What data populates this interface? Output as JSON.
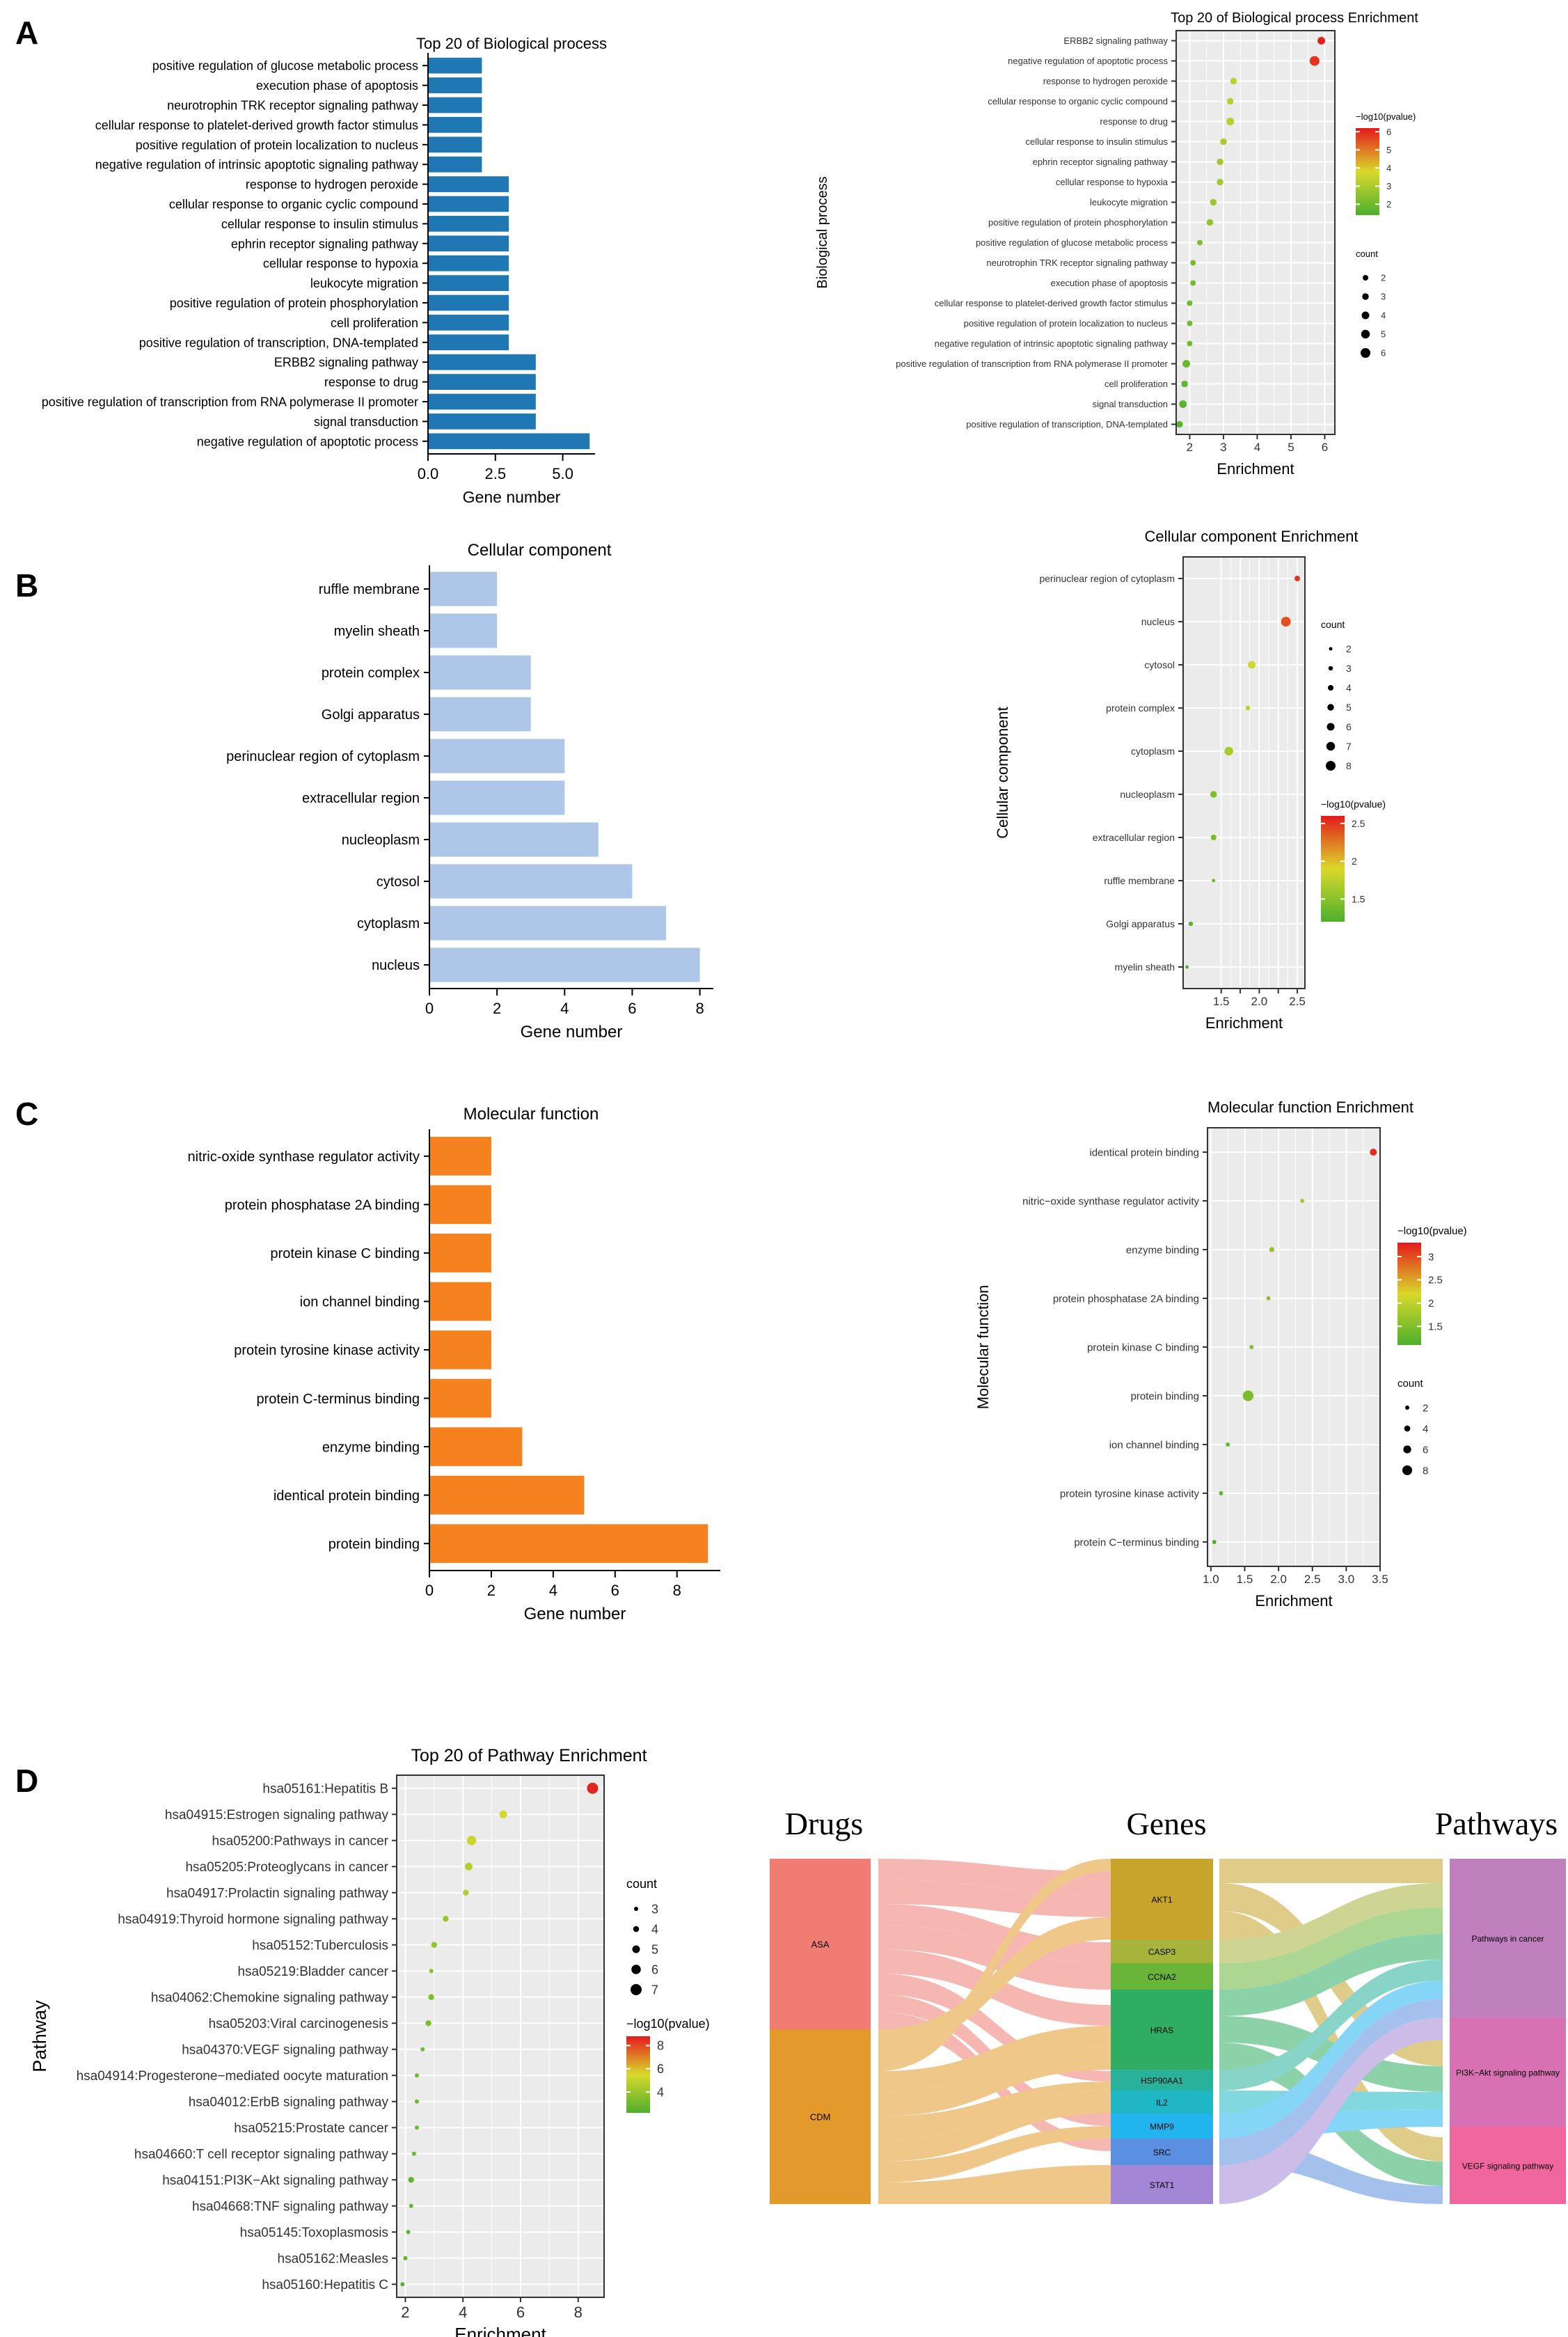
{
  "panel_labels": [
    "A",
    "B",
    "C",
    "D"
  ],
  "colors": {
    "bp_bar": "#1f77b4",
    "cc_bar": "#aec7e8",
    "mf_bar": "#f5821f",
    "grad_high": "#e41a1c",
    "grad_mid": "#d9d92b",
    "grad_low": "#4daf2d",
    "panel_bg": "#ebebeb",
    "grid": "#ffffff"
  },
  "chart_data": [
    {
      "id": "bp_bar",
      "type": "bar",
      "orientation": "horizontal",
      "title": "Top 20 of Biological process",
      "xlabel": "Gene number",
      "ylabel": "",
      "xlim": [
        0,
        6.2
      ],
      "xticks": [
        0,
        2.5,
        5
      ],
      "xtick_labels": [
        "0.0",
        "2.5",
        "5.0"
      ],
      "color": "#1f77b4",
      "categories": [
        "positive regulation of glucose metabolic process",
        "execution phase of apoptosis",
        "neurotrophin TRK receptor signaling pathway",
        "cellular response to platelet-derived growth factor stimulus",
        "positive regulation of protein localization to nucleus",
        "negative regulation of intrinsic apoptotic signaling pathway",
        "response to hydrogen peroxide",
        "cellular response to organic cyclic compound",
        "cellular response to insulin stimulus",
        "ephrin receptor signaling pathway",
        "cellular response to hypoxia",
        "leukocyte migration",
        "positive regulation of protein phosphorylation",
        "cell proliferation",
        "positive regulation of transcription, DNA-templated",
        "ERBB2 signaling pathway",
        "response to drug",
        "positive regulation of transcription from RNA polymerase II promoter",
        "signal transduction",
        "negative regulation of apoptotic process"
      ],
      "values": [
        2,
        2,
        2,
        2,
        2,
        2,
        3,
        3,
        3,
        3,
        3,
        3,
        3,
        3,
        3,
        4,
        4,
        4,
        4,
        6
      ]
    },
    {
      "id": "bp_dot",
      "type": "scatter",
      "title": "Top 20 of Biological process Enrichment",
      "xlabel": "Enrichment",
      "ylabel": "Biological process",
      "xlim": [
        1.6,
        6.3
      ],
      "xticks": [
        2,
        3,
        4,
        5,
        6
      ],
      "categories": [
        "ERBB2 signaling pathway",
        "negative regulation of apoptotic process",
        "response to hydrogen peroxide",
        "cellular response to organic cyclic compound",
        "response to drug",
        "cellular response to insulin stimulus",
        "ephrin receptor signaling pathway",
        "cellular response to hypoxia",
        "leukocyte migration",
        "positive regulation of protein phosphorylation",
        "positive regulation of glucose metabolic process",
        "neurotrophin TRK receptor signaling pathway",
        "execution phase of apoptosis",
        "cellular response to platelet-derived growth factor stimulus",
        "positive regulation of protein localization to nucleus",
        "negative regulation of intrinsic apoptotic signaling pathway",
        "positive regulation of transcription from RNA polymerase II promoter",
        "cell proliferation",
        "signal transduction",
        "positive regulation of transcription, DNA-templated"
      ],
      "x": [
        5.9,
        5.7,
        3.3,
        3.2,
        3.2,
        3.0,
        2.9,
        2.9,
        2.7,
        2.6,
        2.3,
        2.1,
        2.1,
        2.0,
        2.0,
        2.0,
        1.9,
        1.85,
        1.8,
        1.7
      ],
      "counts": [
        4,
        6,
        3,
        3,
        4,
        3,
        3,
        3,
        3,
        3,
        2,
        2,
        2,
        2,
        2,
        2,
        4,
        3,
        4,
        3
      ],
      "pvalue_log": [
        6.1,
        5.9,
        3.3,
        3.2,
        3.2,
        3.0,
        2.9,
        2.9,
        2.7,
        2.6,
        2.3,
        2.1,
        2.1,
        2.0,
        2.0,
        2.0,
        1.9,
        1.8,
        1.7,
        1.6
      ],
      "color_range": [
        1.4,
        6.2
      ],
      "legend_color_title": "−log10(pvalue)",
      "legend_color_ticks": [
        6,
        5,
        4,
        3,
        2
      ],
      "legend_size_title": "count",
      "legend_size_values": [
        2,
        3,
        4,
        5,
        6
      ]
    },
    {
      "id": "cc_bar",
      "type": "bar",
      "orientation": "horizontal",
      "title": "Cellular component",
      "xlabel": "Gene number",
      "ylabel": "",
      "xlim": [
        0,
        8.4
      ],
      "xticks": [
        0,
        2,
        4,
        6,
        8
      ],
      "xtick_labels": [
        "0",
        "2",
        "4",
        "6",
        "8"
      ],
      "color": "#aec7e8",
      "categories": [
        "ruffle membrane",
        "myelin sheath",
        "protein complex",
        "Golgi apparatus",
        "perinuclear region of cytoplasm",
        "extracellular region",
        "nucleoplasm",
        "cytosol",
        "cytoplasm",
        "nucleus"
      ],
      "values": [
        2,
        2,
        3,
        3,
        4,
        4,
        5,
        6,
        7,
        8
      ]
    },
    {
      "id": "cc_dot",
      "type": "scatter",
      "title": "Cellular component Enrichment",
      "xlabel": "Enrichment",
      "ylabel": "Cellular component",
      "xlim": [
        1.0,
        2.6
      ],
      "xticks": [
        1.5,
        1.75,
        2.0,
        2.25,
        2.5
      ],
      "xtick_labels": [
        "1.5",
        "",
        "2.0",
        "",
        "2.5"
      ],
      "categories": [
        "perinuclear region of cytoplasm",
        "nucleus",
        "cytosol",
        "protein complex",
        "cytoplasm",
        "nucleoplasm",
        "extracellular region",
        "ruffle membrane",
        "Golgi apparatus",
        "myelin sheath"
      ],
      "x": [
        2.5,
        2.35,
        1.9,
        1.85,
        1.6,
        1.4,
        1.4,
        1.4,
        1.1,
        1.05
      ],
      "counts": [
        4,
        8,
        6,
        3,
        7,
        5,
        4,
        2,
        3,
        2
      ],
      "pvalue_log": [
        2.5,
        2.4,
        1.85,
        1.75,
        1.65,
        1.45,
        1.4,
        1.35,
        1.25,
        1.2
      ],
      "color_range": [
        1.2,
        2.6
      ],
      "legend_color_title": "−log10(pvalue)",
      "legend_color_ticks": [
        2.5,
        2.0,
        1.5
      ],
      "legend_size_title": "count",
      "legend_size_values": [
        2,
        3,
        4,
        5,
        6,
        7,
        8
      ]
    },
    {
      "id": "mf_bar",
      "type": "bar",
      "orientation": "horizontal",
      "title": "Molecular function",
      "xlabel": "Gene number",
      "ylabel": "",
      "xlim": [
        0,
        9.4
      ],
      "xticks": [
        0,
        2,
        4,
        6,
        8
      ],
      "xtick_labels": [
        "0",
        "2",
        "4",
        "6",
        "8"
      ],
      "color": "#f5821f",
      "categories": [
        "nitric-oxide synthase regulator activity",
        "protein phosphatase 2A binding",
        "protein kinase C binding",
        "ion channel binding",
        "protein tyrosine kinase activity",
        "protein C-terminus binding",
        "enzyme binding",
        "identical protein binding",
        "protein binding"
      ],
      "values": [
        2,
        2,
        2,
        2,
        2,
        2,
        3,
        5,
        9
      ]
    },
    {
      "id": "mf_dot",
      "type": "scatter",
      "title": "Molecular function Enrichment",
      "xlabel": "Enrichment",
      "ylabel": "Molecular function",
      "xlim": [
        0.95,
        3.5
      ],
      "xticks": [
        1.0,
        1.5,
        2.0,
        2.5,
        3.0,
        3.5
      ],
      "categories": [
        "identical protein binding",
        "nitric−oxide synthase regulator activity",
        "enzyme binding",
        "protein phosphatase 2A binding",
        "protein kinase C binding",
        "protein binding",
        "ion channel binding",
        "protein tyrosine kinase activity",
        "protein C−terminus binding"
      ],
      "x": [
        3.4,
        2.35,
        1.9,
        1.85,
        1.6,
        1.55,
        1.25,
        1.15,
        1.05
      ],
      "counts": [
        5,
        2,
        3,
        2,
        2,
        9,
        2,
        2,
        2
      ],
      "pvalue_log": [
        3.2,
        1.8,
        1.65,
        1.6,
        1.5,
        1.45,
        1.3,
        1.25,
        1.15
      ],
      "color_range": [
        1.1,
        3.3
      ],
      "legend_color_title": "−log10(pvalue)",
      "legend_color_ticks": [
        3.0,
        2.5,
        2.0,
        1.5
      ],
      "legend_size_title": "count",
      "legend_size_values": [
        2,
        4,
        6,
        8
      ]
    },
    {
      "id": "kegg_dot",
      "type": "scatter",
      "title": "Top 20 of Pathway Enrichment",
      "xlabel": "Enrichment",
      "ylabel": "Pathway",
      "xlim": [
        1.7,
        8.9
      ],
      "xticks": [
        2,
        4,
        6,
        8
      ],
      "categories": [
        "hsa05161:Hepatitis B",
        "hsa04915:Estrogen signaling pathway",
        "hsa05200:Pathways in cancer",
        "hsa05205:Proteoglycans in cancer",
        "hsa04917:Prolactin signaling pathway",
        "hsa04919:Thyroid hormone signaling pathway",
        "hsa05152:Tuberculosis",
        "hsa05219:Bladder cancer",
        "hsa04062:Chemokine signaling pathway",
        "hsa05203:Viral carcinogenesis",
        "hsa04370:VEGF signaling pathway",
        "hsa04914:Progesterone−mediated oocyte maturation",
        "hsa04012:ErbB signaling pathway",
        "hsa05215:Prostate cancer",
        "hsa04660:T cell receptor signaling pathway",
        "hsa04151:PI3K−Akt signaling pathway",
        "hsa04668:TNF signaling pathway",
        "hsa05145:Toxoplasmosis",
        "hsa05162:Measles",
        "hsa05160:Hepatitis C"
      ],
      "x": [
        8.5,
        5.4,
        4.3,
        4.2,
        4.1,
        3.4,
        3.0,
        2.9,
        2.9,
        2.8,
        2.6,
        2.4,
        2.4,
        2.4,
        2.3,
        2.2,
        2.2,
        2.1,
        2.0,
        1.9
      ],
      "counts": [
        7,
        5,
        6,
        5,
        4,
        4,
        4,
        3,
        4,
        4,
        3,
        3,
        3,
        3,
        3,
        4,
        3,
        3,
        3,
        3
      ],
      "pvalue_log": [
        8.6,
        5.4,
        5.2,
        4.6,
        4.6,
        4.0,
        3.8,
        3.5,
        3.4,
        3.4,
        3.0,
        3.0,
        2.9,
        2.9,
        2.8,
        2.7,
        2.7,
        2.6,
        2.5,
        2.4
      ],
      "color_range": [
        2.2,
        8.8
      ],
      "legend_color_title": "−log10(pvalue)",
      "legend_color_ticks": [
        8,
        6,
        4
      ],
      "legend_size_title": "count",
      "legend_size_values": [
        3,
        4,
        5,
        6,
        7
      ]
    },
    {
      "id": "sankey",
      "type": "sankey",
      "column_titles": [
        "Drugs",
        "Genes",
        "Pathways"
      ],
      "drugs": [
        {
          "name": "ASA",
          "color": "#f07c74"
        },
        {
          "name": "CDM",
          "color": "#e39a2a"
        }
      ],
      "genes": [
        {
          "name": "AKT1",
          "color": "#c8a42a"
        },
        {
          "name": "CASP3",
          "color": "#a7b43c"
        },
        {
          "name": "CCNA2",
          "color": "#69b53a"
        },
        {
          "name": "HRAS",
          "color": "#2fae63"
        },
        {
          "name": "HSP90AA1",
          "color": "#28b29c"
        },
        {
          "name": "IL2",
          "color": "#1fb7c5"
        },
        {
          "name": "MMP9",
          "color": "#22b4ef"
        },
        {
          "name": "SRC",
          "color": "#5b8fe0"
        },
        {
          "name": "STAT1",
          "color": "#a386d6"
        }
      ],
      "pathways": [
        {
          "name": "Pathways in cancer",
          "color": "#c07fbd"
        },
        {
          "name": "PI3K−Akt signaling pathway",
          "color": "#d871b3"
        },
        {
          "name": "VEGF signaling pathway",
          "color": "#f0679e"
        }
      ]
    }
  ]
}
